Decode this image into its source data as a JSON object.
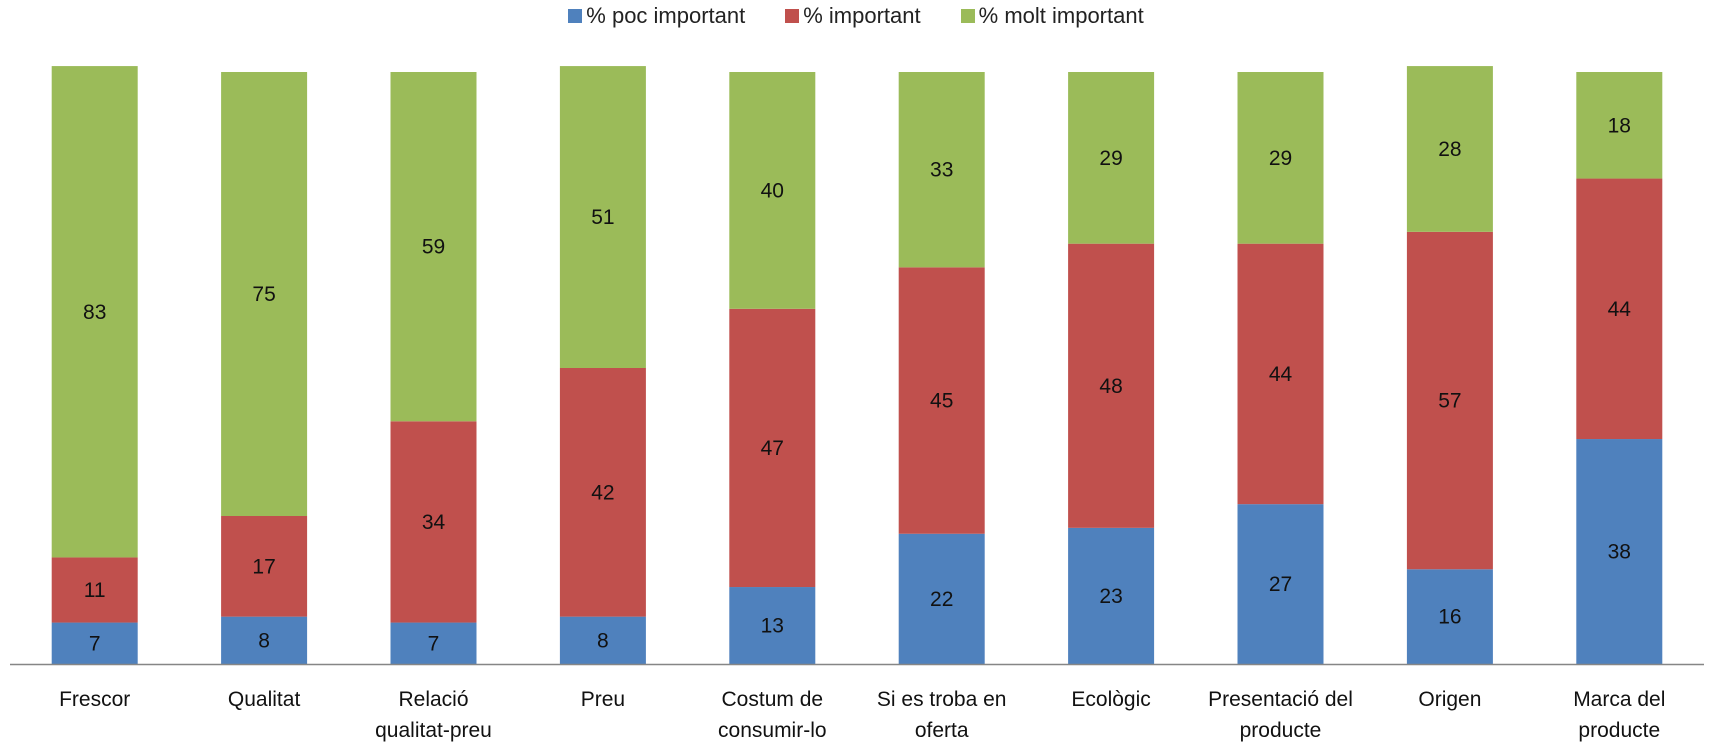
{
  "chart_data": {
    "type": "bar",
    "stacked": true,
    "categories": [
      "Frescor",
      "Qualitat",
      "Relació qualitat-preu",
      "Preu",
      "Costum de consumir-lo",
      "Si es troba en oferta",
      "Ecològic",
      "Presentació del producte",
      "Origen",
      "Marca del producte"
    ],
    "category_lines": [
      [
        "Frescor"
      ],
      [
        "Qualitat"
      ],
      [
        "Relació",
        "qualitat-preu"
      ],
      [
        "Preu"
      ],
      [
        "Costum de",
        "consumir-lo"
      ],
      [
        "Si es troba en",
        "oferta"
      ],
      [
        "Ecològic"
      ],
      [
        "Presentació del",
        "producte"
      ],
      [
        "Origen"
      ],
      [
        "Marca del",
        "producte"
      ]
    ],
    "series": [
      {
        "name": "% poc important",
        "color": "#4f81bd",
        "values": [
          7,
          8,
          7,
          8,
          13,
          22,
          23,
          27,
          16,
          38
        ]
      },
      {
        "name": "% important",
        "color": "#c0504d",
        "values": [
          11,
          17,
          34,
          42,
          47,
          45,
          48,
          44,
          57,
          44
        ]
      },
      {
        "name": "% molt important",
        "color": "#9bbb59",
        "values": [
          83,
          75,
          59,
          51,
          40,
          33,
          29,
          29,
          28,
          18
        ]
      }
    ],
    "ylim": [
      0,
      100
    ],
    "data_labels": true,
    "legend_position": "top",
    "grid": false,
    "title": "",
    "xlabel": "",
    "ylabel": ""
  }
}
